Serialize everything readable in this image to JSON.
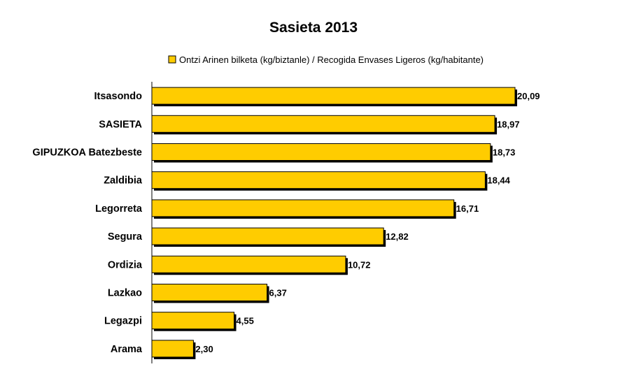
{
  "chart_data": {
    "type": "bar",
    "orientation": "horizontal",
    "title": "Sasieta 2013",
    "categories": [
      "Itsasondo",
      "SASIETA",
      "GIPUZKOA Batezbeste",
      "Zaldibia",
      "Legorreta",
      "Segura",
      "Ordizia",
      "Lazkao",
      "Legazpi",
      "Arama"
    ],
    "series": [
      {
        "name": "Ontzi Arinen bilketa (kg/biztanle) / Recogida Envases Ligeros (kg/habitante)",
        "values": [
          20.09,
          18.97,
          18.73,
          18.44,
          16.71,
          12.82,
          10.72,
          6.37,
          4.55,
          2.3
        ],
        "labels": [
          "20,09",
          "18,97",
          "18,73",
          "18,44",
          "16,71",
          "12,82",
          "10,72",
          "6,37",
          "4,55",
          "2,30"
        ],
        "color": "#FFCC00"
      }
    ],
    "xlabel": "",
    "ylabel": "",
    "xlim": [
      0,
      20.09
    ],
    "grid": false,
    "legend_position": "top"
  }
}
